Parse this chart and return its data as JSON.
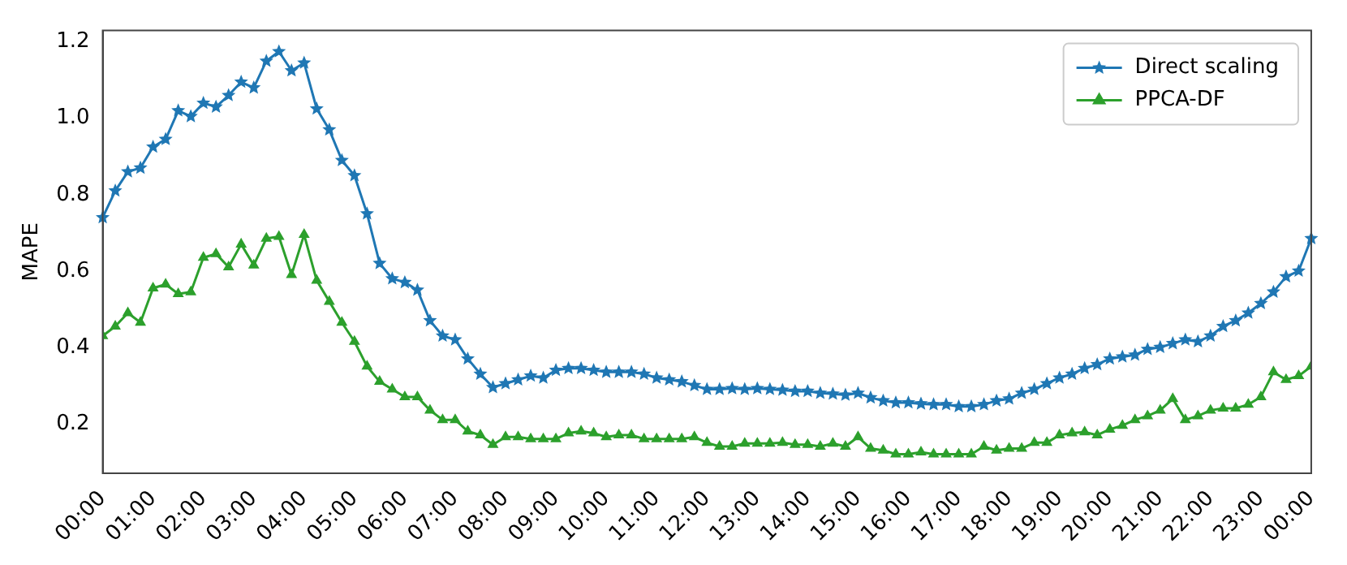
{
  "chart_data": {
    "type": "line",
    "ylabel": "MAPE",
    "legend": "top right",
    "grid": false,
    "line_style": "solid",
    "xlim": [
      0,
      24
    ],
    "ylim": [
      0.07,
      1.23
    ],
    "xticks": [
      {
        "value": 0,
        "label": "00:00"
      },
      {
        "value": 1,
        "label": "01:00"
      },
      {
        "value": 2,
        "label": "02:00"
      },
      {
        "value": 3,
        "label": "03:00"
      },
      {
        "value": 4,
        "label": "04:00"
      },
      {
        "value": 5,
        "label": "05:00"
      },
      {
        "value": 6,
        "label": "06:00"
      },
      {
        "value": 7,
        "label": "07:00"
      },
      {
        "value": 8,
        "label": "08:00"
      },
      {
        "value": 9,
        "label": "09:00"
      },
      {
        "value": 10,
        "label": "10:00"
      },
      {
        "value": 11,
        "label": "11:00"
      },
      {
        "value": 12,
        "label": "12:00"
      },
      {
        "value": 13,
        "label": "13:00"
      },
      {
        "value": 14,
        "label": "14:00"
      },
      {
        "value": 15,
        "label": "15:00"
      },
      {
        "value": 16,
        "label": "16:00"
      },
      {
        "value": 17,
        "label": "17:00"
      },
      {
        "value": 18,
        "label": "18:00"
      },
      {
        "value": 19,
        "label": "19:00"
      },
      {
        "value": 20,
        "label": "20:00"
      },
      {
        "value": 21,
        "label": "21:00"
      },
      {
        "value": 22,
        "label": "22:00"
      },
      {
        "value": 23,
        "label": "23:00"
      },
      {
        "value": 24,
        "label": "00:00"
      }
    ],
    "yticks": [
      {
        "value": 0.2,
        "label": "0.2"
      },
      {
        "value": 0.4,
        "label": "0.4"
      },
      {
        "value": 0.6,
        "label": "0.6"
      },
      {
        "value": 0.8,
        "label": "0.8"
      },
      {
        "value": 1.0,
        "label": "1.0"
      },
      {
        "value": 1.2,
        "label": "1.2"
      }
    ],
    "x": [
      0,
      0.25,
      0.5,
      0.75,
      1,
      1.25,
      1.5,
      1.75,
      2,
      2.25,
      2.5,
      2.75,
      3,
      3.25,
      3.5,
      3.75,
      4,
      4.25,
      4.5,
      4.75,
      5,
      5.25,
      5.5,
      5.75,
      6,
      6.25,
      6.5,
      6.75,
      7,
      7.25,
      7.5,
      7.75,
      8,
      8.25,
      8.5,
      8.75,
      9,
      9.25,
      9.5,
      9.75,
      10,
      10.25,
      10.5,
      10.75,
      11,
      11.25,
      11.5,
      11.75,
      12,
      12.25,
      12.5,
      12.75,
      13,
      13.25,
      13.5,
      13.75,
      14,
      14.25,
      14.5,
      14.75,
      15,
      15.25,
      15.5,
      15.75,
      16,
      16.25,
      16.5,
      16.75,
      17,
      17.25,
      17.5,
      17.75,
      18,
      18.25,
      18.5,
      18.75,
      19,
      19.25,
      19.5,
      19.75,
      20,
      20.25,
      20.5,
      20.75,
      21,
      21.25,
      21.5,
      21.75,
      22,
      22.25,
      22.5,
      22.75,
      23,
      23.25,
      23.5,
      23.75,
      24
    ],
    "series": [
      {
        "name": "Direct scaling",
        "color": "#1f77b4",
        "marker": "star",
        "values": [
          0.74,
          0.81,
          0.86,
          0.87,
          0.925,
          0.945,
          1.02,
          1.005,
          1.04,
          1.03,
          1.06,
          1.095,
          1.08,
          1.15,
          1.175,
          1.125,
          1.145,
          1.025,
          0.97,
          0.89,
          0.85,
          0.75,
          0.62,
          0.58,
          0.57,
          0.55,
          0.47,
          0.43,
          0.42,
          0.37,
          0.33,
          0.295,
          0.305,
          0.315,
          0.325,
          0.32,
          0.34,
          0.345,
          0.345,
          0.34,
          0.335,
          0.335,
          0.335,
          0.33,
          0.32,
          0.315,
          0.31,
          0.3,
          0.29,
          0.29,
          0.292,
          0.29,
          0.292,
          0.29,
          0.288,
          0.285,
          0.285,
          0.28,
          0.278,
          0.275,
          0.28,
          0.268,
          0.26,
          0.255,
          0.255,
          0.252,
          0.25,
          0.25,
          0.245,
          0.245,
          0.25,
          0.26,
          0.265,
          0.28,
          0.29,
          0.305,
          0.32,
          0.33,
          0.345,
          0.355,
          0.37,
          0.375,
          0.38,
          0.395,
          0.4,
          0.41,
          0.42,
          0.415,
          0.43,
          0.455,
          0.47,
          0.49,
          0.515,
          0.545,
          0.585,
          0.6,
          0.685
        ]
      },
      {
        "name": "PPCA-DF",
        "color": "#2ca02c",
        "marker": "triangle",
        "values": [
          0.43,
          0.455,
          0.49,
          0.465,
          0.555,
          0.565,
          0.54,
          0.545,
          0.635,
          0.645,
          0.61,
          0.67,
          0.615,
          0.685,
          0.69,
          0.59,
          0.695,
          0.575,
          0.52,
          0.465,
          0.415,
          0.35,
          0.31,
          0.29,
          0.27,
          0.27,
          0.235,
          0.21,
          0.21,
          0.18,
          0.17,
          0.145,
          0.165,
          0.165,
          0.16,
          0.16,
          0.16,
          0.175,
          0.18,
          0.175,
          0.165,
          0.17,
          0.17,
          0.16,
          0.16,
          0.16,
          0.16,
          0.165,
          0.15,
          0.14,
          0.14,
          0.148,
          0.148,
          0.148,
          0.15,
          0.145,
          0.145,
          0.14,
          0.148,
          0.14,
          0.165,
          0.135,
          0.13,
          0.12,
          0.12,
          0.125,
          0.12,
          0.12,
          0.12,
          0.12,
          0.14,
          0.13,
          0.135,
          0.135,
          0.15,
          0.15,
          0.17,
          0.175,
          0.178,
          0.17,
          0.185,
          0.195,
          0.21,
          0.22,
          0.235,
          0.265,
          0.21,
          0.22,
          0.235,
          0.24,
          0.24,
          0.25,
          0.27,
          0.335,
          0.315,
          0.325,
          0.35
        ]
      }
    ]
  }
}
